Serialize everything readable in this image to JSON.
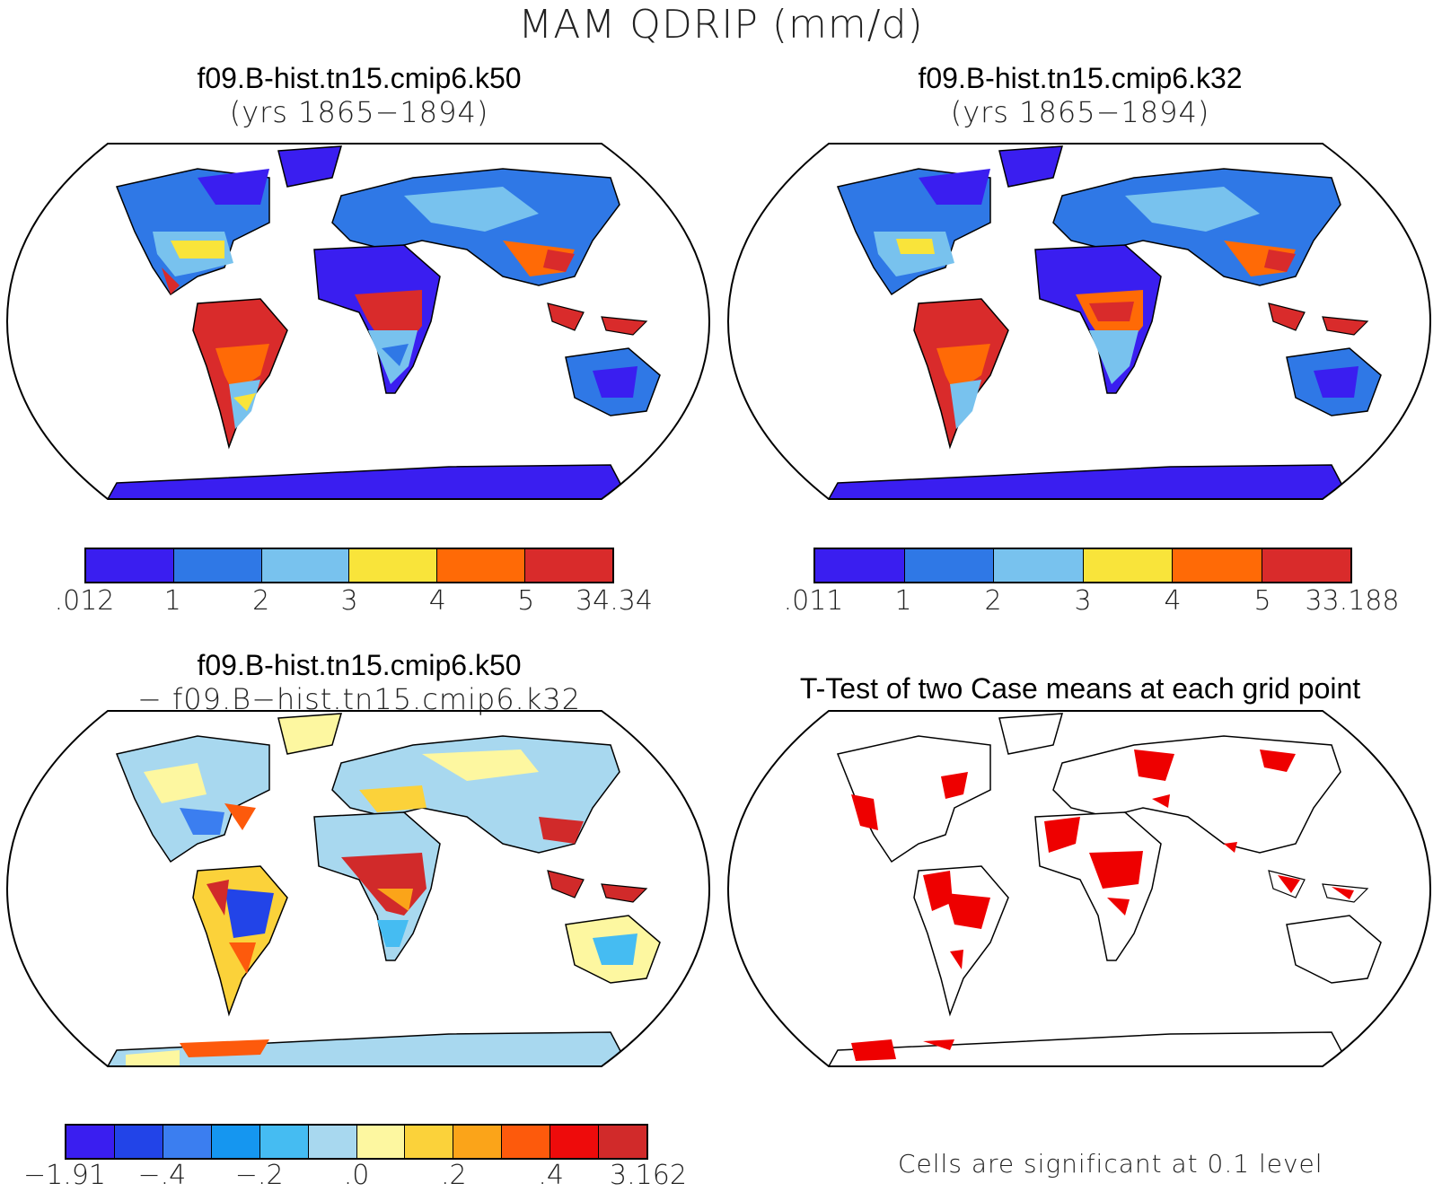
{
  "title": "MAM QDRIP (mm/d)",
  "panels": [
    {
      "title": "f09.B-hist.tn15.cmip6.k50",
      "subtitle": "(yrs 1865−1894)"
    },
    {
      "title": "f09.B-hist.tn15.cmip6.k32",
      "subtitle": "(yrs 1865−1894)"
    },
    {
      "title": "f09.B-hist.tn15.cmip6.k50",
      "subtitle": "− f09.B−hist.tn15.cmip6.k32"
    },
    {
      "title": "T-Test of two Case means at each grid point",
      "subtitle": ""
    }
  ],
  "colorbars": {
    "k50": {
      "colors": [
        "#3a1ef0",
        "#2f78e6",
        "#78c2ee",
        "#f9e43a",
        "#ff6a06",
        "#d92b2b"
      ],
      "labels": [
        ".012",
        "1",
        "2",
        "3",
        "4",
        "5",
        "34.34"
      ]
    },
    "k32": {
      "colors": [
        "#3a1ef0",
        "#2f78e6",
        "#78c2ee",
        "#f9e43a",
        "#ff6a06",
        "#d92b2b"
      ],
      "labels": [
        ".011",
        "1",
        "2",
        "3",
        "4",
        "5",
        "33.188"
      ]
    },
    "diff": {
      "colors": [
        "#3a1ef0",
        "#2244e8",
        "#3b7ef0",
        "#1596f0",
        "#45bcf2",
        "#a8d8ef",
        "#fdf7a0",
        "#fbd23a",
        "#fba419",
        "#fd5a0c",
        "#ee0b0b",
        "#d12a2a"
      ],
      "labels": [
        "−1.91",
        "−.4",
        "−.2",
        ".0",
        ".2",
        ".4",
        "3.162"
      ]
    }
  },
  "significance_note": "Cells are significant at 0.1 level",
  "significance_color": "#ee0000",
  "legend_colors": {
    "land_outline": "#000000",
    "ocean": "#ffffff"
  }
}
